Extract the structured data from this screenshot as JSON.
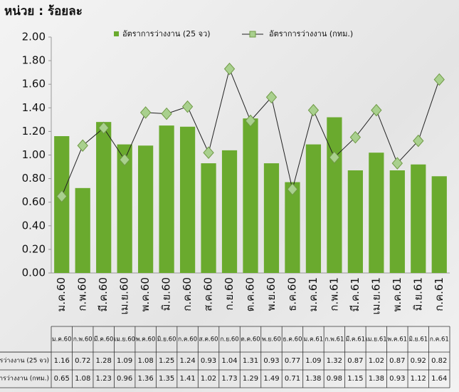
{
  "chart_data": {
    "type": "bar_line",
    "title": "หน่วย : ร้อยละ",
    "categories": [
      "ม.ค.60",
      "ก.พ.60",
      "มี.ค.60",
      "เม.ย.60",
      "พ.ค.60",
      "มิ.ย.60",
      "ก.ค.60",
      "ส.ค.60",
      "ก.ย.60",
      "ต.ค.60",
      "พ.ย.60",
      "ธ.ค.60",
      "ม.ค.61",
      "ก.พ.61",
      "มี.ค.61",
      "เม.ย.61",
      "พ.ค.61",
      "มิ.ย.61",
      "ก.ค.61"
    ],
    "series": [
      {
        "name": "อัตราการว่างงาน (25 จว)",
        "type": "bar",
        "color": "#6aaa2e",
        "values": [
          1.16,
          0.72,
          1.28,
          1.09,
          1.08,
          1.25,
          1.24,
          0.93,
          1.04,
          1.31,
          0.93,
          0.77,
          1.09,
          1.32,
          0.87,
          1.02,
          0.87,
          0.92,
          0.82
        ]
      },
      {
        "name": "อัตราการว่างงาน (กทม.)",
        "type": "line",
        "color": "#a9d08e",
        "values": [
          0.65,
          1.08,
          1.23,
          0.96,
          1.36,
          1.35,
          1.41,
          1.02,
          1.73,
          1.29,
          1.49,
          0.71,
          1.38,
          0.98,
          1.15,
          1.38,
          0.93,
          1.12,
          1.64
        ]
      }
    ],
    "ylim": [
      0,
      2
    ],
    "yticks": [
      {
        "value": 0,
        "label": "0.00"
      },
      {
        "value": 0.2,
        "label": "0.20"
      },
      {
        "value": 0.4,
        "label": "0.40"
      },
      {
        "value": 0.6,
        "label": "0.60"
      },
      {
        "value": 0.8,
        "label": "0.80"
      },
      {
        "value": 1,
        "label": "1.00"
      },
      {
        "value": 1.2,
        "label": "1.20"
      },
      {
        "value": 1.4,
        "label": "1.40"
      },
      {
        "value": 1.6,
        "label": "1.60"
      },
      {
        "value": 1.8,
        "label": "1.80"
      },
      {
        "value": 2,
        "label": "2.00"
      }
    ],
    "legend": "top",
    "data_table": true
  }
}
